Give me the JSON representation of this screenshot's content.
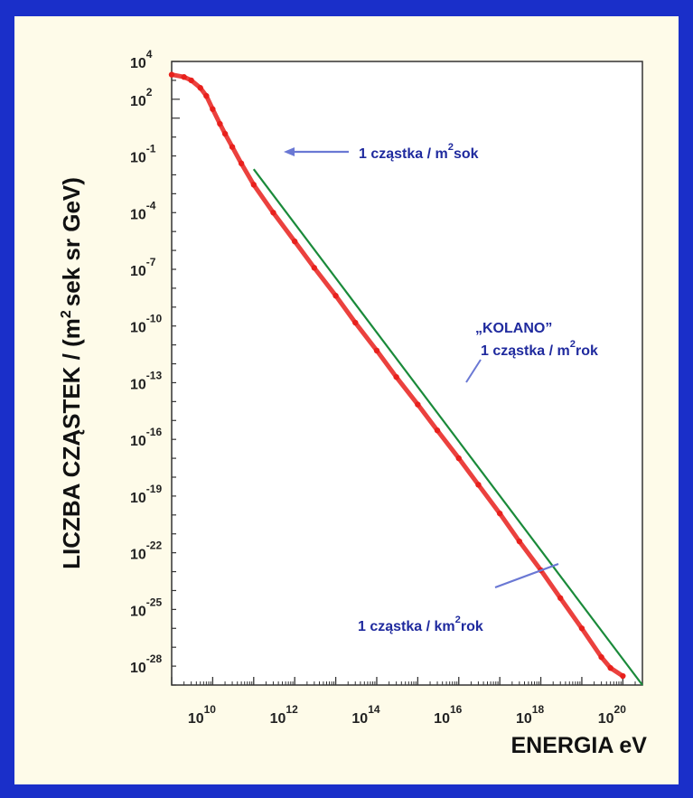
{
  "chart_data": {
    "type": "scatter",
    "ylabel_main": "LICZBA CZĄSTEK / (m",
    "ylabel_sup": "2",
    "ylabel_rest": "sek sr GeV)",
    "xlabel": "ENERGIA  eV",
    "xscale": "log",
    "yscale": "log",
    "xlim": [
      1000000000.0,
      3e+20
    ],
    "ylim": [
      1e-29,
      10000.0
    ],
    "x_tick_labels": [
      {
        "base": "10",
        "exp": "10"
      },
      {
        "base": "10",
        "exp": "12"
      },
      {
        "base": "10",
        "exp": "14"
      },
      {
        "base": "10",
        "exp": "16"
      },
      {
        "base": "10",
        "exp": "18"
      },
      {
        "base": "10",
        "exp": "20"
      }
    ],
    "x_tick_values": [
      10000000000.0,
      1000000000000.0,
      100000000000000.0,
      1e+16,
      1e+18,
      1e+20
    ],
    "y_tick_labels": [
      {
        "base": "10",
        "exp": "4"
      },
      {
        "base": "10",
        "exp": "2"
      },
      {
        "base": "10",
        "exp": "-1"
      },
      {
        "base": "10",
        "exp": "-4"
      },
      {
        "base": "10",
        "exp": "-7"
      },
      {
        "base": "10",
        "exp": "-10"
      },
      {
        "base": "10",
        "exp": "-13"
      },
      {
        "base": "10",
        "exp": "-16"
      },
      {
        "base": "10",
        "exp": "-19"
      },
      {
        "base": "10",
        "exp": "-22"
      },
      {
        "base": "10",
        "exp": "-25"
      },
      {
        "base": "10",
        "exp": "-28"
      }
    ],
    "y_tick_values": [
      10000.0,
      100.0,
      0.1,
      0.0001,
      1e-07,
      1e-10,
      1e-13,
      1e-16,
      1e-19,
      1e-22,
      1e-25,
      1e-28
    ],
    "measured_flux": {
      "color": "#e8201c",
      "points": [
        [
          1000000000.0,
          2000.0
        ],
        [
          2000000000.0,
          1500.0
        ],
        [
          3000000000.0,
          1000.0
        ],
        [
          5000000000.0,
          400.0
        ],
        [
          7000000000.0,
          150.0
        ],
        [
          10000000000.0,
          30.0
        ],
        [
          15000000000.0,
          5
        ],
        [
          20000000000.0,
          1.5
        ],
        [
          30000000000.0,
          0.3
        ],
        [
          50000000000.0,
          0.04
        ],
        [
          100000000000.0,
          0.003
        ],
        [
          300000000000.0,
          0.0001
        ],
        [
          1000000000000.0,
          3e-06
        ],
        [
          3000000000000.0,
          1.2e-07
        ],
        [
          10000000000000.0,
          4e-09
        ],
        [
          30000000000000.0,
          1.5e-10
        ],
        [
          100000000000000.0,
          5e-12
        ],
        [
          300000000000000.0,
          2e-13
        ],
        [
          1000000000000000.0,
          7e-15
        ],
        [
          3000000000000000.0,
          3e-16
        ],
        [
          1e+16,
          1e-17
        ],
        [
          3e+16,
          4e-19
        ],
        [
          1e+17,
          1.2e-20
        ],
        [
          3e+17,
          4e-22
        ],
        [
          1e+18,
          1.2e-23
        ],
        [
          3e+18,
          4e-25
        ],
        [
          1e+19,
          1e-26
        ],
        [
          3e+19,
          3e-28
        ],
        [
          5e+19,
          8e-29
        ],
        [
          1e+20,
          3e-29
        ]
      ]
    },
    "power_law_fit": {
      "color": "#1a8a3a",
      "points": [
        [
          100000000000.0,
          0.02
        ],
        [
          3e+20,
          1e-29
        ]
      ]
    },
    "annotations": [
      {
        "text": "1 cząstka / m",
        "sup": "2",
        "rest": "sok",
        "color": "#1f2a9e",
        "target": [
          100000000000.0,
          0.02
        ]
      },
      {
        "text": "„KOLANO”",
        "color": "#1f2a9e"
      },
      {
        "text": "1 cząstka / m",
        "sup": "2",
        "rest": "rok",
        "color": "#1f2a9e",
        "target": [
          3000000000000000.0,
          1e-15
        ]
      },
      {
        "text": "1 cząstka / km",
        "sup": "2",
        "rest": "rok",
        "color": "#1f2a9e",
        "target": [
          1e+18,
          1e-23
        ]
      }
    ]
  }
}
